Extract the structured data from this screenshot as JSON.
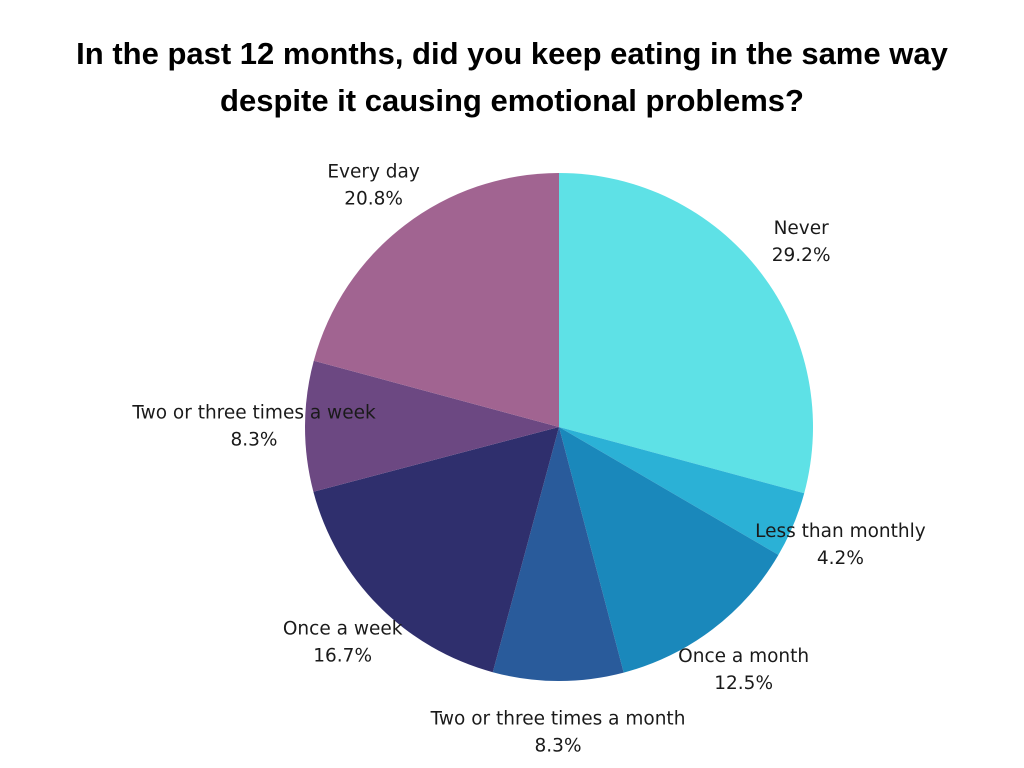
{
  "chart_data": {
    "type": "pie",
    "title_lines": [
      "In the past 12 months, did you keep eating in the same way",
      "despite it causing emotional problems?"
    ],
    "start_angle_deg": 0,
    "direction": "clockwise",
    "slices": [
      {
        "label": "Never",
        "value": 29.2,
        "display": "29.2%",
        "color": "#5ee1e6"
      },
      {
        "label": "Less than monthly",
        "value": 4.2,
        "display": "4.2%",
        "color": "#2bb1d6"
      },
      {
        "label": "Once a month",
        "value": 12.5,
        "display": "12.5%",
        "color": "#1a88bb"
      },
      {
        "label": "Two or three times a month",
        "value": 8.3,
        "display": "8.3%",
        "color": "#295b9b"
      },
      {
        "label": "Once a week",
        "value": 16.7,
        "display": "16.7%",
        "color": "#2f2f6d"
      },
      {
        "label": "Two or three times a week",
        "value": 8.3,
        "display": "8.3%",
        "color": "#6c4882"
      },
      {
        "label": "Every day",
        "value": 20.8,
        "display": "20.8%",
        "color": "#a16491"
      }
    ]
  }
}
